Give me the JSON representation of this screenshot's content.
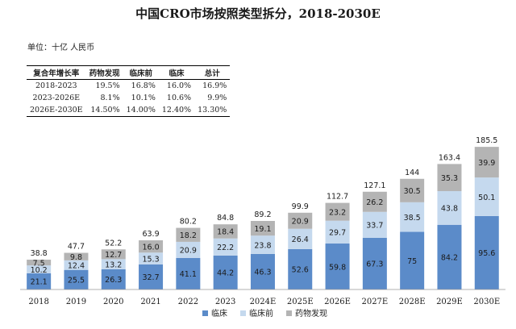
{
  "chart_data": {
    "type": "bar",
    "stacked": true,
    "title": "中国CRO市场按照类型拆分，2018-2030E",
    "unit_label": "单位：十亿 人民币",
    "categories": [
      "2018",
      "2019",
      "2020",
      "2021",
      "2022",
      "2023",
      "2024E",
      "2025E",
      "2026E",
      "2027E",
      "2028E",
      "2029E",
      "2030E"
    ],
    "series": [
      {
        "name": "临床",
        "color": "#5B8BC9",
        "values": [
          21.1,
          25.5,
          26.3,
          32.7,
          41.1,
          44.2,
          46.3,
          52.6,
          59.8,
          67.3,
          75,
          84.2,
          95.6
        ]
      },
      {
        "name": "临床前",
        "color": "#C5D9EE",
        "values": [
          10.2,
          12.4,
          13.2,
          15.3,
          20.9,
          22.2,
          23.8,
          26.4,
          29.7,
          33.7,
          38.5,
          43.8,
          50.1
        ]
      },
      {
        "name": "药物发现",
        "color": "#B4B4B4",
        "values": [
          7.5,
          9.8,
          12.7,
          16.0,
          18.2,
          18.4,
          19.1,
          20.9,
          23.2,
          26.2,
          30.5,
          35.3,
          39.9
        ]
      }
    ],
    "value_labels": {
      "临床": [
        "21.1",
        "25.5",
        "26.3",
        "32.7",
        "41.1",
        "44.2",
        "46.3",
        "52.6",
        "59.8",
        "67.3",
        "75",
        "84.2",
        "95.6"
      ],
      "临床前": [
        "10.2",
        "12.4",
        "13.2",
        "15.3",
        "20.9",
        "22.2",
        "23.8",
        "26.4",
        "29.7",
        "33.7",
        "38.5",
        "43.8",
        "50.1"
      ],
      "药物发现": [
        "7.5",
        "9.8",
        "12.7",
        "16.0",
        "18.2",
        "18.4",
        "19.1",
        "20.9",
        "23.2",
        "26.2",
        "30.5",
        "35.3",
        "39.9"
      ]
    },
    "totals": [
      38.8,
      47.7,
      52.2,
      63.9,
      80.2,
      84.8,
      89.2,
      99.9,
      112.7,
      127.1,
      144,
      163.4,
      185.5
    ],
    "total_labels": [
      "38.8",
      "47.7",
      "52.2",
      "63.9",
      "80.2",
      "84.8",
      "89.2",
      "99.9",
      "112.7",
      "127.1",
      "144",
      "163.4",
      "185.5"
    ],
    "ylim": [
      0,
      200
    ],
    "grid": false,
    "legend_position": "bottom",
    "legend": [
      "临床",
      "临床前",
      "药物发现"
    ]
  },
  "cagr_table": {
    "headers": [
      "复合年增长率",
      "药物发现",
      "临床前",
      "临床",
      "总计"
    ],
    "rows": [
      [
        "2018-2023",
        "19.5%",
        "16.8%",
        "16.0%",
        "16.9%"
      ],
      [
        "2023-2026E",
        "8.1%",
        "10.1%",
        "10.6%",
        "9.9%"
      ],
      [
        "2026E-2030E",
        "14.50%",
        "14.00%",
        "12.40%",
        "13.30%"
      ]
    ]
  }
}
